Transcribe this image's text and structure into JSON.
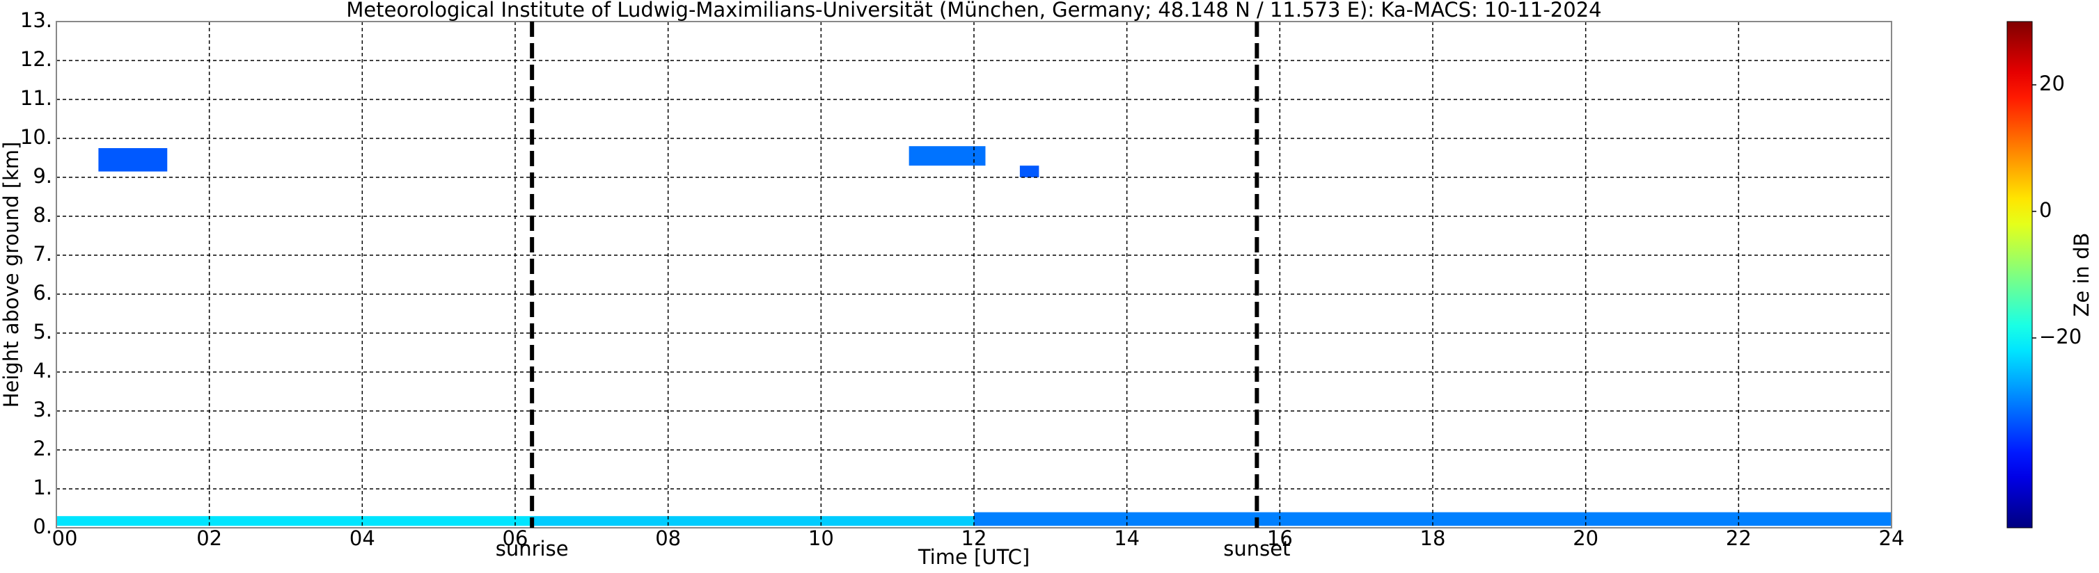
{
  "chart_data": {
    "type": "time-height",
    "title": "Meteorological Institute of Ludwig-Maximilians-Universität (München, Germany; 48.148 N / 11.573 E):    Ka-MACS: 10-11-2024",
    "x_label": "Time [UTC]",
    "y_label": "Height above ground [km]",
    "xlim": [
      0,
      24
    ],
    "xticks": [
      {
        "value": 0,
        "label": "00"
      },
      {
        "value": 2,
        "label": "02"
      },
      {
        "value": 4,
        "label": "04"
      },
      {
        "value": 6,
        "label": "06"
      },
      {
        "value": 8,
        "label": "08"
      },
      10,
      12,
      14,
      16,
      18,
      20,
      22,
      24
    ],
    "ylim": [
      0,
      13
    ],
    "yticks": [
      {
        "value": 0,
        "label": "0."
      },
      {
        "value": 1,
        "label": "1."
      },
      {
        "value": 2,
        "label": "2."
      },
      {
        "value": 3,
        "label": "3."
      },
      {
        "value": 4,
        "label": "4."
      },
      {
        "value": 5,
        "label": "5."
      },
      {
        "value": 6,
        "label": "6."
      },
      {
        "value": 7,
        "label": "7."
      },
      {
        "value": 8,
        "label": "8."
      },
      {
        "value": 9,
        "label": "9."
      },
      {
        "value": 10,
        "label": "10."
      },
      {
        "value": 11,
        "label": "11."
      },
      {
        "value": 12,
        "label": "12."
      },
      {
        "value": 13,
        "label": "13."
      }
    ],
    "grid": true,
    "colormap": "jet",
    "colorbar_label": "Ze in dB",
    "clim": [
      -50,
      30
    ],
    "cticks": [
      20,
      0,
      {
        "value": -20,
        "label": "−20"
      }
    ],
    "annotations": [
      {
        "x": 6.22,
        "label": "sunrise"
      },
      {
        "x": 15.7,
        "label": "sunset"
      }
    ],
    "echoes": [
      {
        "x": [
          0,
          6.2
        ],
        "y": [
          0.05,
          0.3
        ],
        "ze": -22
      },
      {
        "x": [
          6.2,
          12
        ],
        "y": [
          0.05,
          0.3
        ],
        "ze": -24
      },
      {
        "x": [
          12,
          24
        ],
        "y": [
          0.05,
          0.4
        ],
        "ze": -30
      },
      {
        "x": [
          0.55,
          1.45
        ],
        "y": [
          9.15,
          9.75
        ],
        "ze": -33
      },
      {
        "x": [
          11.15,
          12.15
        ],
        "y": [
          9.3,
          9.8
        ],
        "ze": -31
      },
      {
        "x": [
          12.6,
          12.85
        ],
        "y": [
          9.0,
          9.3
        ],
        "ze": -33
      }
    ]
  }
}
